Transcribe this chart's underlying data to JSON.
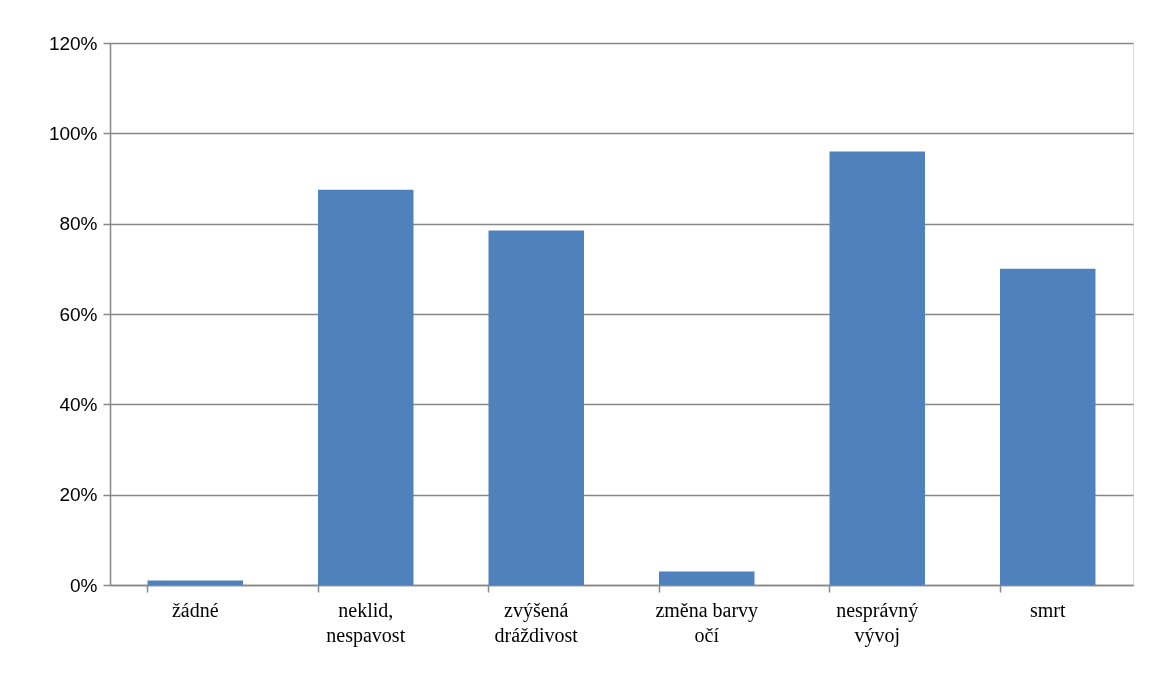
{
  "chart_data": {
    "type": "bar",
    "categories": [
      "žádné",
      "neklid, nespavost",
      "zvýšená dráždivost",
      "změna barvy očí",
      "nesprávný vývoj",
      "smrt"
    ],
    "values": [
      1,
      87.5,
      78.5,
      3,
      96,
      70
    ],
    "color": "#4f81bd",
    "ylim": [
      0,
      120
    ],
    "yticks": [
      {
        "value": 0,
        "label": "0%"
      },
      {
        "value": 20,
        "label": "20%"
      },
      {
        "value": 40,
        "label": "40%"
      },
      {
        "value": 60,
        "label": "60%"
      },
      {
        "value": 80,
        "label": "80%"
      },
      {
        "value": 100,
        "label": "100%"
      },
      {
        "value": 120,
        "label": "120%"
      }
    ],
    "grid": "y"
  }
}
